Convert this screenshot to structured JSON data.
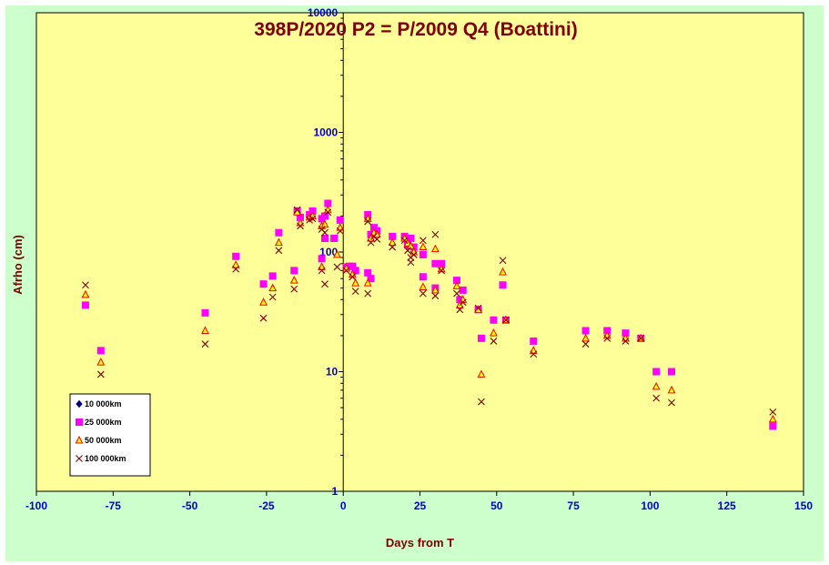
{
  "chart_data": {
    "type": "scatter",
    "title": "398P/2020 P2 = P/2009 Q4 (Boattini)",
    "xlabel": "Days from  T",
    "ylabel": "Afrho (cm)",
    "xlim": [
      -100,
      150
    ],
    "ylim": [
      1,
      10000
    ],
    "yscale": "log",
    "x_ticks": [
      -100,
      -75,
      -50,
      -25,
      0,
      25,
      50,
      75,
      100,
      125,
      150
    ],
    "x_tick_labels": [
      "-100",
      "-75",
      "-50",
      "-25",
      "0",
      "25",
      "50",
      "75",
      "100",
      "125",
      "150"
    ],
    "y_ticks": [
      1,
      10,
      100,
      1000,
      10000
    ],
    "y_tick_labels": [
      "1",
      "10",
      "100",
      "1000",
      "10000"
    ],
    "grid": false,
    "legend_position": "bottom-left",
    "plot_background": "#ffff99",
    "outer_background": "#ccffcc",
    "series": [
      {
        "name": "10 000km",
        "marker": "diamond",
        "color": "#000080",
        "points": []
      },
      {
        "name": "25 000km",
        "marker": "square",
        "color": "#ff00ff",
        "points": [
          [
            -84,
            36
          ],
          [
            -79,
            15
          ],
          [
            -45,
            31
          ],
          [
            -35,
            92
          ],
          [
            -26,
            54
          ],
          [
            -23,
            63
          ],
          [
            -21,
            145
          ],
          [
            -16,
            70
          ],
          [
            -15,
            220
          ],
          [
            -14,
            195
          ],
          [
            -11,
            205
          ],
          [
            -10,
            220
          ],
          [
            -7,
            190
          ],
          [
            -7,
            88
          ],
          [
            -6,
            200
          ],
          [
            -6,
            130
          ],
          [
            -5,
            255
          ],
          [
            -3,
            130
          ],
          [
            -1,
            185
          ],
          [
            1,
            75
          ],
          [
            2,
            76
          ],
          [
            3,
            76
          ],
          [
            4,
            70
          ],
          [
            8,
            67
          ],
          [
            8,
            205
          ],
          [
            9,
            140
          ],
          [
            9,
            60
          ],
          [
            10,
            160
          ],
          [
            11,
            150
          ],
          [
            16,
            135
          ],
          [
            20,
            135
          ],
          [
            21,
            115
          ],
          [
            22,
            130
          ],
          [
            23,
            110
          ],
          [
            26,
            95
          ],
          [
            26,
            62
          ],
          [
            30,
            80
          ],
          [
            30,
            50
          ],
          [
            32,
            80
          ],
          [
            37,
            58
          ],
          [
            38,
            40
          ],
          [
            39,
            48
          ],
          [
            44,
            33
          ],
          [
            45,
            19
          ],
          [
            49,
            27
          ],
          [
            52,
            53
          ],
          [
            53,
            27
          ],
          [
            62,
            18
          ],
          [
            79,
            22
          ],
          [
            86,
            22
          ],
          [
            92,
            21
          ],
          [
            97,
            19
          ],
          [
            102,
            10
          ],
          [
            107,
            10
          ],
          [
            140,
            3.5
          ]
        ]
      },
      {
        "name": "50 000km",
        "marker": "triangle",
        "color": "#ff0000",
        "points": [
          [
            -84,
            44
          ],
          [
            -79,
            12
          ],
          [
            -45,
            22
          ],
          [
            -35,
            78
          ],
          [
            -26,
            38
          ],
          [
            -23,
            50
          ],
          [
            -21,
            120
          ],
          [
            -16,
            58
          ],
          [
            -15,
            215
          ],
          [
            -14,
            175
          ],
          [
            -11,
            195
          ],
          [
            -10,
            200
          ],
          [
            -7,
            75
          ],
          [
            -7,
            165
          ],
          [
            -6,
            170
          ],
          [
            -5,
            225
          ],
          [
            -2,
            95
          ],
          [
            -1,
            160
          ],
          [
            1,
            73
          ],
          [
            3,
            65
          ],
          [
            4,
            55
          ],
          [
            8,
            55
          ],
          [
            8,
            190
          ],
          [
            9,
            130
          ],
          [
            10,
            145
          ],
          [
            11,
            140
          ],
          [
            16,
            120
          ],
          [
            20,
            130
          ],
          [
            21,
            118
          ],
          [
            22,
            112
          ],
          [
            23,
            100
          ],
          [
            26,
            110
          ],
          [
            26,
            51
          ],
          [
            30,
            106
          ],
          [
            30,
            48
          ],
          [
            32,
            72
          ],
          [
            37,
            52
          ],
          [
            38,
            36
          ],
          [
            39,
            40
          ],
          [
            44,
            33
          ],
          [
            45,
            9.5
          ],
          [
            49,
            21
          ],
          [
            52,
            68
          ],
          [
            53,
            27
          ],
          [
            62,
            15
          ],
          [
            79,
            19
          ],
          [
            86,
            20
          ],
          [
            92,
            19
          ],
          [
            97,
            19
          ],
          [
            102,
            7.5
          ],
          [
            107,
            7
          ],
          [
            140,
            4
          ]
        ]
      },
      {
        "name": "100 000km",
        "marker": "x",
        "color": "#800000",
        "points": [
          [
            -84,
            53
          ],
          [
            -79,
            9.5
          ],
          [
            -45,
            17
          ],
          [
            -35,
            72
          ],
          [
            -26,
            28
          ],
          [
            -23,
            42
          ],
          [
            -21,
            103
          ],
          [
            -16,
            49
          ],
          [
            -15,
            225
          ],
          [
            -14,
            165
          ],
          [
            -11,
            185
          ],
          [
            -10,
            190
          ],
          [
            -7,
            70
          ],
          [
            -7,
            155
          ],
          [
            -6,
            145
          ],
          [
            -6,
            54
          ],
          [
            -5,
            215
          ],
          [
            -2,
            75
          ],
          [
            -1,
            150
          ],
          [
            1,
            70
          ],
          [
            3,
            62
          ],
          [
            4,
            47
          ],
          [
            8,
            45
          ],
          [
            8,
            180
          ],
          [
            9,
            120
          ],
          [
            10,
            135
          ],
          [
            11,
            128
          ],
          [
            16,
            110
          ],
          [
            20,
            125
          ],
          [
            21,
            103
          ],
          [
            22,
            90
          ],
          [
            22,
            82
          ],
          [
            23,
            95
          ],
          [
            26,
            125
          ],
          [
            26,
            45
          ],
          [
            30,
            140
          ],
          [
            30,
            43
          ],
          [
            32,
            70
          ],
          [
            37,
            45
          ],
          [
            38,
            33
          ],
          [
            39,
            38
          ],
          [
            44,
            34
          ],
          [
            45,
            5.6
          ],
          [
            49,
            18
          ],
          [
            52,
            85
          ],
          [
            53,
            27
          ],
          [
            62,
            14
          ],
          [
            79,
            17
          ],
          [
            86,
            19
          ],
          [
            92,
            18
          ],
          [
            97,
            19
          ],
          [
            102,
            6
          ],
          [
            107,
            5.5
          ],
          [
            140,
            4.6
          ]
        ]
      }
    ]
  }
}
